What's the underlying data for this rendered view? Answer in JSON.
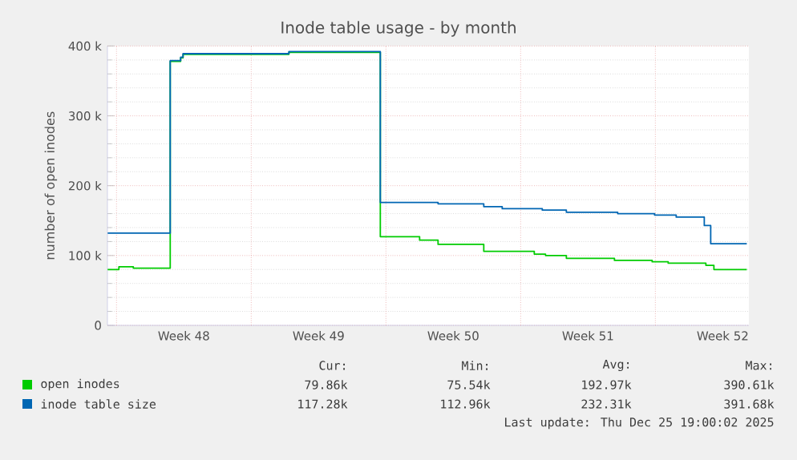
{
  "chart_data": {
    "type": "step",
    "title": "Inode table usage - by month",
    "ylabel": "number of open inodes",
    "xlim": [
      "2025-11-23T12:43",
      "2025-12-26T20:38"
    ],
    "xticks": [
      {
        "value": "2025-11-27T12:00",
        "label": "Week 48"
      },
      {
        "value": "2025-12-04T12:00",
        "label": "Week 49"
      },
      {
        "value": "2025-12-11T12:00",
        "label": "Week 50"
      },
      {
        "value": "2025-12-18T12:00",
        "label": "Week 51"
      },
      {
        "value": "2025-12-25T12:00",
        "label": "Week 52"
      },
      {
        "value": "2025-11-24",
        "label": null
      },
      {
        "value": "2025-12-01",
        "label": null
      },
      {
        "value": "2025-12-08",
        "label": null
      },
      {
        "value": "2025-12-15",
        "label": null
      },
      {
        "value": "2025-12-22",
        "label": null
      }
    ],
    "ylim": [
      0,
      400000
    ],
    "yticks": [
      {
        "value": 0,
        "label": "0"
      },
      {
        "value": 100000,
        "label": "100 k"
      },
      {
        "value": 200000,
        "label": "200 k"
      },
      {
        "value": 300000,
        "label": "300 k"
      },
      {
        "value": 400000,
        "label": "400 k"
      }
    ],
    "grid": true,
    "legend": "bottom",
    "series": [
      {
        "name": "open inodes",
        "color": "#00cc00",
        "x": [
          "2025-11-23T13:00",
          "2025-11-24T03:00",
          "2025-11-24T21:00",
          "2025-11-26T19:00",
          "2025-11-27T08:00",
          "2025-11-27T11:00",
          "2025-12-02T23:00",
          "2025-12-07T17:00",
          "2025-12-09T18:00",
          "2025-12-10T17:00",
          "2025-12-13T02:00",
          "2025-12-15T17:00",
          "2025-12-16T07:00",
          "2025-12-17T09:00",
          "2025-12-19T21:00",
          "2025-12-21T20:00",
          "2025-12-22T16:00",
          "2025-12-24T15:00",
          "2025-12-25T01:00",
          "2025-12-26T18:00"
        ],
        "values": [
          80000,
          84000,
          82000,
          378000,
          383000,
          388000,
          391000,
          127000,
          122000,
          116000,
          106000,
          102000,
          100000,
          96000,
          93000,
          91000,
          89000,
          86000,
          80000,
          80000
        ]
      },
      {
        "name": "inode table size",
        "color": "#0066b3",
        "x": [
          "2025-11-23T13:00",
          "2025-11-26T19:00",
          "2025-11-27T08:00",
          "2025-11-27T11:00",
          "2025-12-02T23:00",
          "2025-12-07T17:00",
          "2025-12-10T17:00",
          "2025-12-13T02:00",
          "2025-12-14T01:00",
          "2025-12-16T03:00",
          "2025-12-17T09:00",
          "2025-12-20T01:00",
          "2025-12-21T23:00",
          "2025-12-23T02:00",
          "2025-12-24T13:00",
          "2025-12-24T21:00",
          "2025-12-26T18:00"
        ],
        "values": [
          132000,
          379000,
          384000,
          389000,
          392000,
          176000,
          174000,
          170000,
          167000,
          165000,
          162000,
          160000,
          158000,
          155000,
          143000,
          117000,
          117000
        ]
      }
    ],
    "annotations": [
      "Cur:",
      "Min:",
      "Avg:",
      "Max:",
      "79.86k",
      "75.54k",
      "192.97k",
      "390.61k",
      "117.28k",
      "112.96k",
      "232.31k",
      "391.68k",
      "Last update: Thu Dec 25 19:00:02 2025"
    ]
  }
}
